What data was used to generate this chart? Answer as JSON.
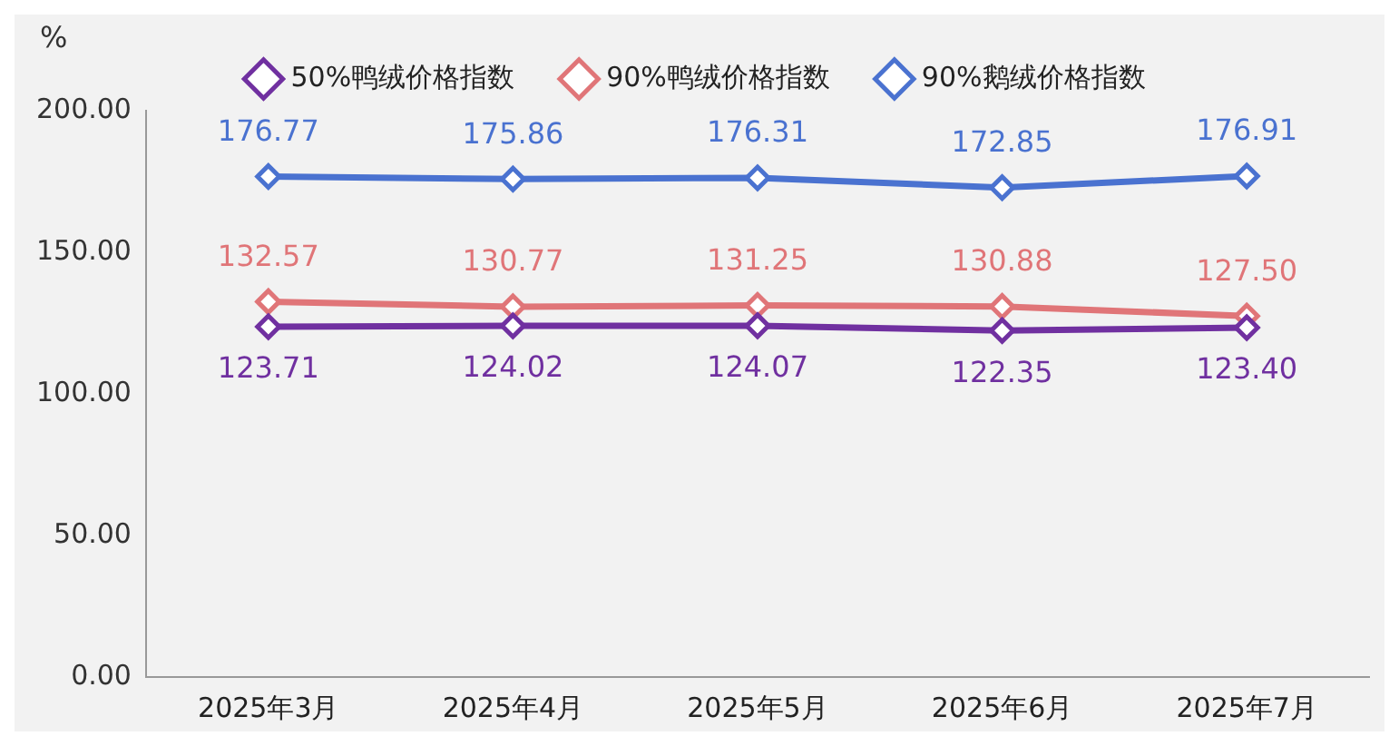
{
  "chart_data": {
    "type": "line",
    "ylabel": "%",
    "categories": [
      "2025年3月",
      "2025年4月",
      "2025年5月",
      "2025年6月",
      "2025年7月"
    ],
    "series": [
      {
        "name": "50%鸭绒价格指数",
        "color": "#7030a0",
        "values": [
          123.71,
          124.02,
          124.07,
          122.35,
          123.4
        ],
        "value_labels": [
          "123.71",
          "124.02",
          "124.07",
          "122.35",
          "123.40"
        ]
      },
      {
        "name": "90%鸭绒价格指数",
        "color": "#e07578",
        "values": [
          132.57,
          130.77,
          131.25,
          130.88,
          127.5
        ],
        "value_labels": [
          "132.57",
          "130.77",
          "131.25",
          "130.88",
          "127.50"
        ]
      },
      {
        "name": "90%鹅绒价格指数",
        "color": "#4a72d0",
        "values": [
          176.77,
          175.86,
          176.31,
          172.85,
          176.91
        ],
        "value_labels": [
          "176.77",
          "175.86",
          "176.31",
          "172.85",
          "176.91"
        ]
      }
    ],
    "ylim": [
      0,
      200
    ],
    "yticks": [
      {
        "value": 0,
        "label": "0.00"
      },
      {
        "value": 50,
        "label": "50.00"
      },
      {
        "value": 100,
        "label": "100.00"
      },
      {
        "value": 150,
        "label": "150.00"
      },
      {
        "value": 200,
        "label": "200.00"
      }
    ],
    "grid": false,
    "legend": "top",
    "marker": "diamond",
    "line_style": "solid"
  }
}
